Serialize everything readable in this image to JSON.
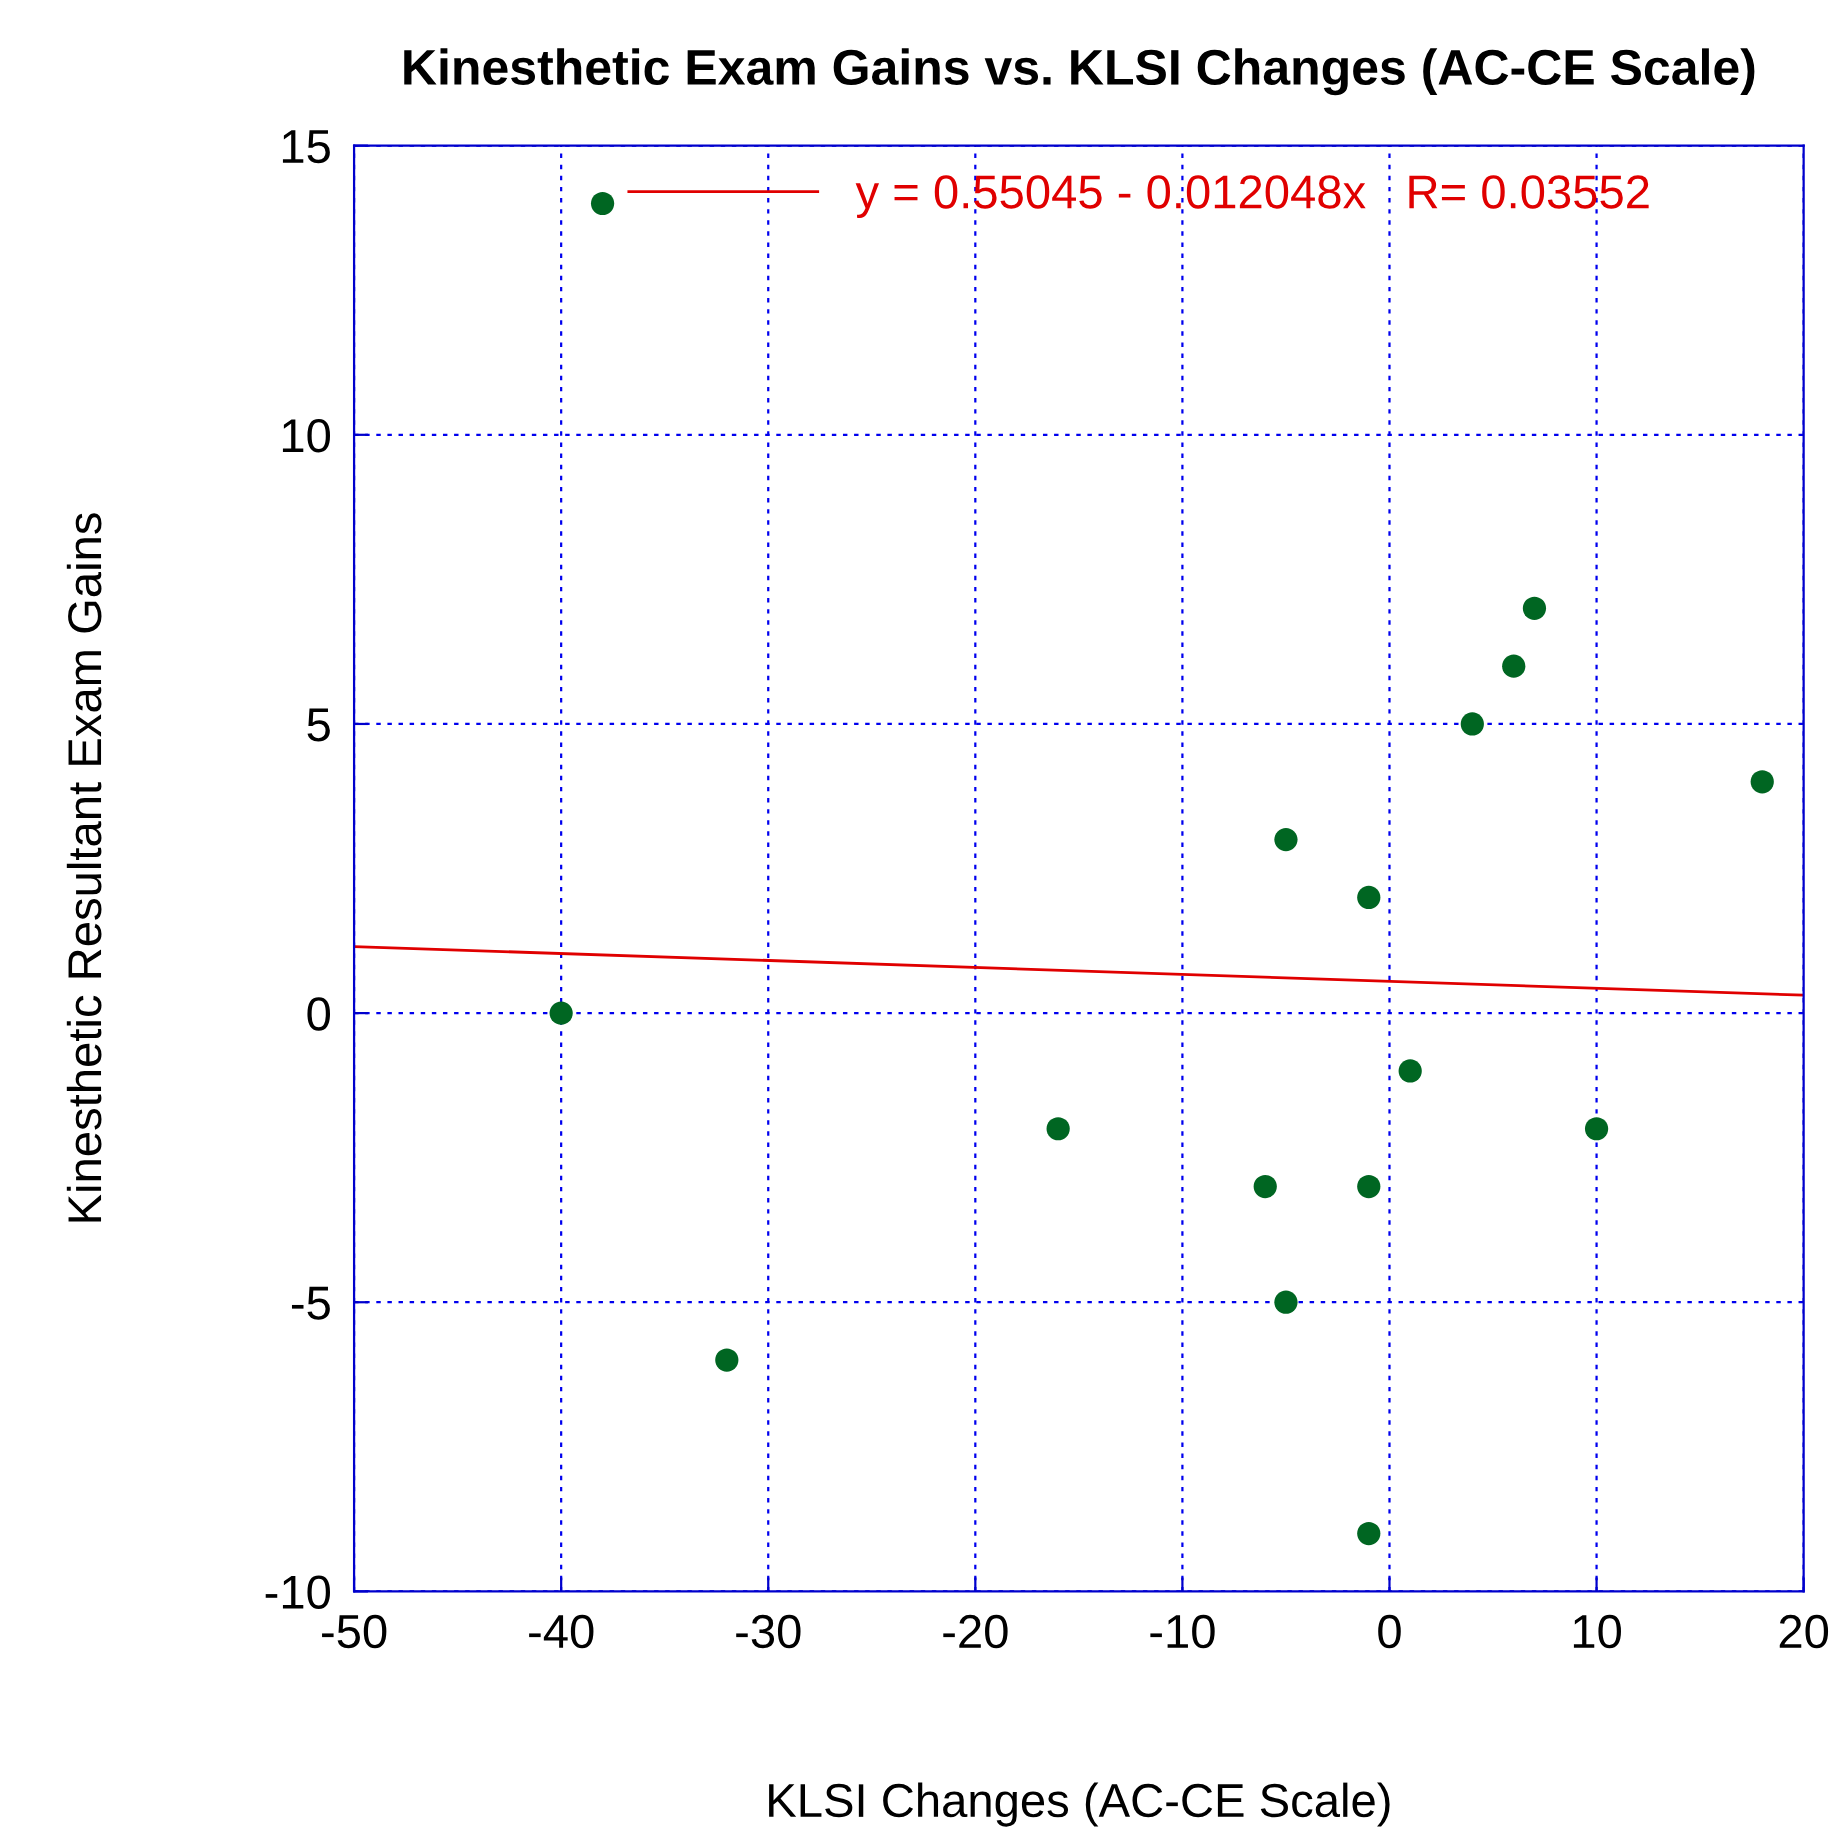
{
  "chart_data": {
    "type": "scatter",
    "title": "Kinesthetic Exam Gains vs. KLSI Changes (AC-CE Scale)",
    "xlabel": "KLSI Changes (AC-CE Scale)",
    "ylabel": "Kinesthetic Resultant Exam Gains",
    "series": [
      {
        "marker": "circle",
        "color": "#006622",
        "x": [
          -38,
          -40,
          -32,
          -16,
          -6,
          -5,
          -5,
          -1,
          -1,
          -1,
          1,
          4,
          6,
          7,
          10,
          18
        ],
        "values": [
          14,
          0,
          -6,
          -2,
          -3,
          3,
          -5,
          2,
          -3,
          -9,
          -1,
          5,
          6,
          7,
          -2,
          4
        ]
      },
      {
        "type": "line",
        "name": "y = 0.55045 - 0.012048x   R= 0.03552",
        "color": "#e00000",
        "x": [
          -50,
          20
        ],
        "values": [
          1.15,
          0.31
        ]
      }
    ],
    "xlim": [
      -50,
      20
    ],
    "xticks": [
      -50,
      -40,
      -30,
      -20,
      -10,
      0,
      10,
      20
    ],
    "ylim": [
      -10,
      15
    ],
    "yticks": [
      -10,
      -5,
      0,
      5,
      10,
      15
    ],
    "grid": true,
    "legend": "top left"
  }
}
